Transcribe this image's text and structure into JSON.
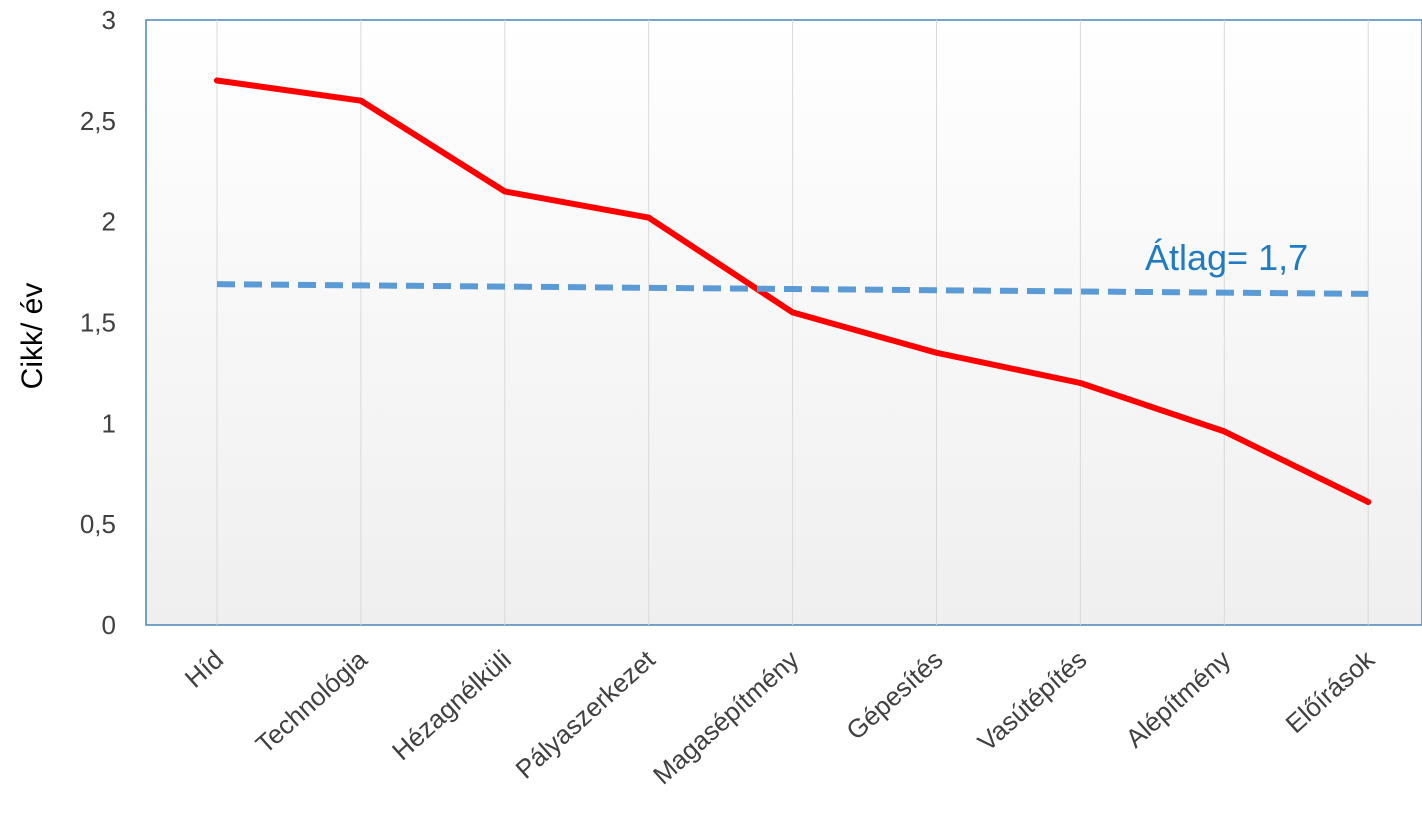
{
  "chart_data": {
    "type": "line",
    "title": "",
    "xlabel": "",
    "ylabel": "Cikk/ év",
    "ylim": [
      0,
      3
    ],
    "yticks": [
      "0",
      "0,5",
      "1",
      "1,5",
      "2",
      "2,5",
      "3"
    ],
    "ytick_values": [
      0,
      0.5,
      1,
      1.5,
      2,
      2.5,
      3
    ],
    "grid": "vertical lines at categories",
    "categories": [
      "Híd",
      "Technológia",
      "Hézagnélküli",
      "Pályaszerkezet",
      "Magasépítmény",
      "Gépesítés",
      "Vasútépítés",
      "Alépítmény",
      "Előírások"
    ],
    "series": [
      {
        "values": [
          2.7,
          2.6,
          2.15,
          2.02,
          1.55,
          1.35,
          1.2,
          0.96,
          0.61
        ],
        "color": "#ff0000",
        "style": "solid"
      },
      {
        "values": [
          1.69,
          1.684,
          1.678,
          1.672,
          1.666,
          1.66,
          1.654,
          1.648,
          1.642
        ],
        "color": "#5b9bd5",
        "style": "dashed"
      }
    ],
    "annotations": [
      {
        "text": "Átlag= 1,7",
        "color": "#1f7bc4"
      }
    ]
  }
}
